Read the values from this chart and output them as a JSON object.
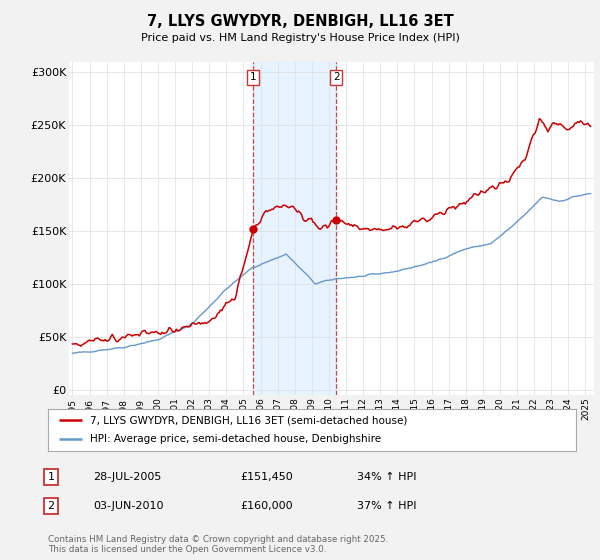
{
  "title": "7, LLYS GWYDYR, DENBIGH, LL16 3ET",
  "subtitle": "Price paid vs. HM Land Registry's House Price Index (HPI)",
  "ylabel_ticks": [
    "£0",
    "£50K",
    "£100K",
    "£150K",
    "£200K",
    "£250K",
    "£300K"
  ],
  "ytick_vals": [
    0,
    50000,
    100000,
    150000,
    200000,
    250000,
    300000
  ],
  "ylim": [
    -5000,
    310000
  ],
  "xlim_start": 1994.8,
  "xlim_end": 2025.5,
  "red_color": "#cc0000",
  "blue_color": "#6699cc",
  "bg_color": "#f2f2f2",
  "plot_bg": "#ffffff",
  "shade_color": "#ddeeff",
  "transaction1_x": 2005.57,
  "transaction2_x": 2010.42,
  "transaction1_y": 151450,
  "transaction2_y": 160000,
  "legend1": "7, LLYS GWYDYR, DENBIGH, LL16 3ET (semi-detached house)",
  "legend2": "HPI: Average price, semi-detached house, Denbighshire",
  "ann1_date": "28-JUL-2005",
  "ann1_price": "£151,450",
  "ann1_hpi": "34% ↑ HPI",
  "ann2_date": "03-JUN-2010",
  "ann2_price": "£160,000",
  "ann2_hpi": "37% ↑ HPI",
  "footer": "Contains HM Land Registry data © Crown copyright and database right 2025.\nThis data is licensed under the Open Government Licence v3.0.",
  "xticks": [
    1995,
    1996,
    1997,
    1998,
    1999,
    2000,
    2001,
    2002,
    2003,
    2004,
    2005,
    2006,
    2007,
    2008,
    2009,
    2010,
    2011,
    2012,
    2013,
    2014,
    2015,
    2016,
    2017,
    2018,
    2019,
    2020,
    2021,
    2022,
    2023,
    2024,
    2025
  ]
}
